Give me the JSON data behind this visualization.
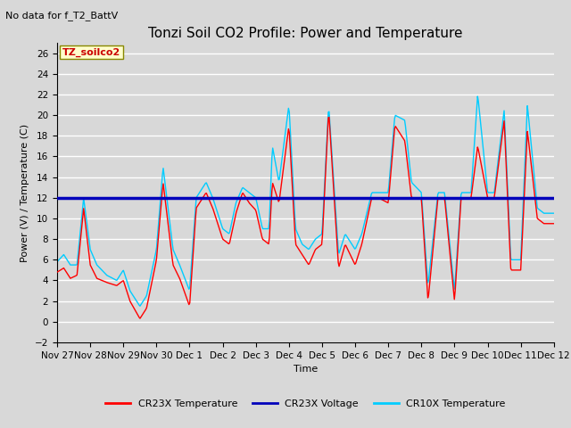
{
  "title": "Tonzi Soil CO2 Profile: Power and Temperature",
  "subtitle": "No data for f_T2_BattV",
  "ylabel": "Power (V) / Temperature (C)",
  "xlabel": "Time",
  "ylim": [
    -2,
    27
  ],
  "yticks": [
    -2,
    0,
    2,
    4,
    6,
    8,
    10,
    12,
    14,
    16,
    18,
    20,
    22,
    24,
    26
  ],
  "voltage_value": 12.0,
  "legend_labels": [
    "CR23X Temperature",
    "CR23X Voltage",
    "CR10X Temperature"
  ],
  "legend_colors": [
    "#ff0000",
    "#0000bb",
    "#00ccff"
  ],
  "cr23x_color": "#ff0000",
  "cr10x_color": "#00ccff",
  "voltage_color": "#0000bb",
  "bg_color": "#d8d8d8",
  "plot_bg_color": "#d8d8d8",
  "grid_color": "#ffffff",
  "annotation_box_color": "#ffffcc",
  "annotation_text": "TZ_soilco2",
  "annotation_text_color": "#cc0000",
  "xtick_labels": [
    "Nov 27",
    "Nov 28",
    "Nov 29",
    "Nov 30",
    "Dec 1",
    "Dec 2",
    "Dec 3",
    "Dec 4",
    "Dec 5",
    "Dec 6",
    "Dec 7",
    "Dec 8",
    "Dec 9",
    "Dec 10",
    "Dec 11",
    "Dec 12"
  ],
  "title_fontsize": 11,
  "label_fontsize": 8,
  "tick_fontsize": 7.5,
  "cr23x_key_x": [
    0,
    0.2,
    0.4,
    0.6,
    0.8,
    1.0,
    1.2,
    1.5,
    1.8,
    2.0,
    2.2,
    2.5,
    2.7,
    3.0,
    3.2,
    3.5,
    3.7,
    4.0,
    4.2,
    4.5,
    4.7,
    5.0,
    5.2,
    5.4,
    5.6,
    5.8,
    6.0,
    6.2,
    6.4,
    6.5,
    6.7,
    7.0,
    7.2,
    7.4,
    7.6,
    7.8,
    8.0,
    8.2,
    8.5,
    8.7,
    9.0,
    9.2,
    9.5,
    9.7,
    10.0,
    10.2,
    10.5,
    10.7,
    11.0,
    11.2,
    11.5,
    11.7,
    12.0,
    12.2,
    12.5,
    12.7,
    13.0,
    13.2,
    13.5,
    13.7,
    14.0,
    14.2,
    14.5,
    14.7,
    15.0
  ],
  "cr23x_key_y": [
    4.8,
    5.2,
    4.2,
    4.5,
    11.0,
    5.5,
    4.2,
    3.8,
    3.5,
    4.0,
    2.0,
    0.3,
    1.3,
    6.0,
    13.5,
    5.5,
    4.2,
    1.5,
    11.0,
    12.5,
    11.0,
    8.0,
    7.5,
    10.5,
    12.5,
    11.5,
    10.8,
    8.0,
    7.5,
    13.5,
    11.5,
    19.0,
    7.5,
    6.5,
    5.5,
    7.0,
    7.5,
    20.5,
    5.2,
    7.5,
    5.5,
    7.5,
    12.0,
    12.0,
    11.5,
    19.0,
    17.5,
    12.0,
    12.0,
    2.0,
    12.0,
    12.0,
    2.0,
    12.0,
    12.0,
    17.0,
    12.0,
    12.0,
    19.5,
    5.0,
    5.0,
    18.5,
    10.0,
    9.5,
    9.5
  ],
  "cr10x_key_x": [
    0,
    0.2,
    0.4,
    0.6,
    0.8,
    1.0,
    1.2,
    1.5,
    1.8,
    2.0,
    2.2,
    2.5,
    2.7,
    3.0,
    3.2,
    3.5,
    3.7,
    4.0,
    4.2,
    4.5,
    4.7,
    5.0,
    5.2,
    5.4,
    5.6,
    5.8,
    6.0,
    6.2,
    6.4,
    6.5,
    6.7,
    7.0,
    7.2,
    7.4,
    7.6,
    7.8,
    8.0,
    8.2,
    8.5,
    8.7,
    9.0,
    9.2,
    9.5,
    9.7,
    10.0,
    10.2,
    10.5,
    10.7,
    11.0,
    11.2,
    11.5,
    11.7,
    12.0,
    12.2,
    12.5,
    12.7,
    13.0,
    13.2,
    13.5,
    13.7,
    14.0,
    14.2,
    14.5,
    14.7,
    15.0
  ],
  "cr10x_key_y": [
    5.8,
    6.5,
    5.5,
    5.5,
    12.0,
    7.0,
    5.5,
    4.5,
    4.0,
    5.0,
    3.0,
    1.5,
    2.5,
    7.0,
    15.0,
    7.0,
    5.5,
    3.0,
    12.0,
    13.5,
    12.0,
    9.0,
    8.5,
    11.5,
    13.0,
    12.5,
    12.0,
    9.0,
    9.0,
    17.0,
    13.5,
    21.0,
    9.0,
    7.5,
    7.0,
    8.0,
    8.5,
    21.0,
    6.5,
    8.5,
    7.0,
    8.5,
    12.5,
    12.5,
    12.5,
    20.0,
    19.5,
    13.5,
    12.5,
    3.5,
    12.5,
    12.5,
    3.0,
    12.5,
    12.5,
    22.0,
    12.5,
    12.5,
    20.5,
    6.0,
    6.0,
    21.0,
    11.0,
    10.5,
    10.5
  ]
}
